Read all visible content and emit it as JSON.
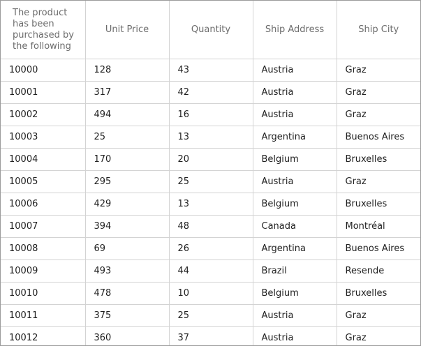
{
  "columns": [
    "The product has been purchased by the following",
    "Unit Price",
    "Quantity",
    "Ship Address",
    "Ship City"
  ],
  "rows": [
    [
      "10000",
      "128",
      "43",
      "Austria",
      "Graz"
    ],
    [
      "10001",
      "317",
      "42",
      "Austria",
      "Graz"
    ],
    [
      "10002",
      "494",
      "16",
      "Austria",
      "Graz"
    ],
    [
      "10003",
      "25",
      "13",
      "Argentina",
      "Buenos Aires"
    ],
    [
      "10004",
      "170",
      "20",
      "Belgium",
      "Bruxelles"
    ],
    [
      "10005",
      "295",
      "25",
      "Austria",
      "Graz"
    ],
    [
      "10006",
      "429",
      "13",
      "Belgium",
      "Bruxelles"
    ],
    [
      "10007",
      "394",
      "48",
      "Canada",
      "Montréal"
    ],
    [
      "10008",
      "69",
      "26",
      "Argentina",
      "Buenos Aires"
    ],
    [
      "10009",
      "493",
      "44",
      "Brazil",
      "Resende"
    ],
    [
      "10010",
      "478",
      "10",
      "Belgium",
      "Bruxelles"
    ],
    [
      "10011",
      "375",
      "25",
      "Austria",
      "Graz"
    ],
    [
      "10012",
      "360",
      "37",
      "Austria",
      "Graz"
    ]
  ]
}
